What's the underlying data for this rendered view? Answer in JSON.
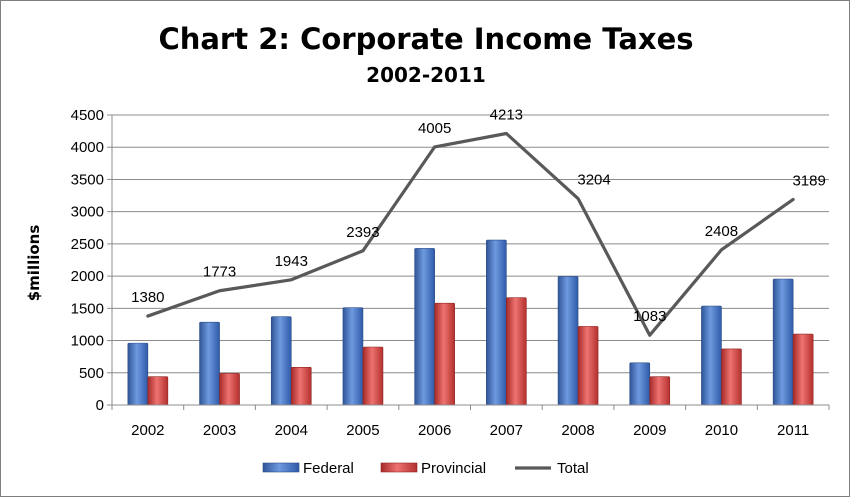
{
  "chart_data": {
    "type": "bar",
    "title": "Chart 2: Corporate Income Taxes",
    "subtitle": "2002-2011",
    "ylabel": "$millions",
    "xlabel": "",
    "ylim": [
      0,
      4500
    ],
    "yticks": [
      0,
      500,
      1000,
      1500,
      2000,
      2500,
      3000,
      3500,
      4000,
      4500
    ],
    "grid": true,
    "legend_position": "bottom",
    "categories": [
      "2002",
      "2003",
      "2004",
      "2005",
      "2006",
      "2007",
      "2008",
      "2009",
      "2010",
      "2011"
    ],
    "series": [
      {
        "name": "Federal",
        "type": "bar",
        "color": "#4472c4",
        "values": [
          960,
          1285,
          1370,
          1510,
          2430,
          2560,
          1995,
          655,
          1535,
          1955
        ]
      },
      {
        "name": "Provincial",
        "type": "bar",
        "color": "#d9413f",
        "values": [
          440,
          490,
          585,
          900,
          1580,
          1665,
          1220,
          440,
          870,
          1100
        ]
      },
      {
        "name": "Total",
        "type": "line",
        "color": "#595959",
        "values": [
          1380,
          1773,
          1943,
          2393,
          4005,
          4213,
          3204,
          1083,
          2408,
          3189
        ],
        "labels": [
          "1380",
          "1773",
          "1943",
          "2393",
          "4005",
          "4213",
          "3204",
          "1083",
          "2408",
          "3189"
        ]
      }
    ]
  }
}
